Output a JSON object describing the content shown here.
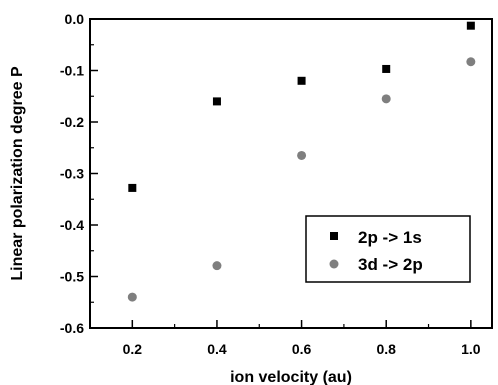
{
  "chart_data": {
    "type": "scatter",
    "xlabel": "ion velocity (au)",
    "ylabel": "Linear polarization degree P",
    "xlim": [
      0.1,
      1.05
    ],
    "ylim": [
      -0.6,
      0.0
    ],
    "x_ticks": [
      0.2,
      0.4,
      0.6,
      0.8,
      1.0
    ],
    "x_tick_labels": [
      "0.2",
      "0.4",
      "0.6",
      "0.8",
      "1.0"
    ],
    "y_ticks": [
      0.0,
      -0.1,
      -0.2,
      -0.3,
      -0.4,
      -0.5,
      -0.6
    ],
    "y_tick_labels": [
      "0.0",
      "-0.1",
      "-0.2",
      "-0.3",
      "-0.4",
      "-0.5",
      "-0.6"
    ],
    "grid": false,
    "legend_position": "lower-right",
    "series": [
      {
        "name": "2p -> 1s",
        "marker": "square",
        "color": "#000000",
        "x": [
          0.2,
          0.4,
          0.6,
          0.8,
          1.0
        ],
        "y": [
          -0.328,
          -0.16,
          -0.12,
          -0.097,
          -0.013
        ]
      },
      {
        "name": "3d -> 2p",
        "marker": "circle",
        "color": "#7f7f7f",
        "x": [
          0.2,
          0.4,
          0.6,
          0.8,
          1.0
        ],
        "y": [
          -0.54,
          -0.479,
          -0.265,
          -0.155,
          -0.083
        ]
      }
    ]
  }
}
